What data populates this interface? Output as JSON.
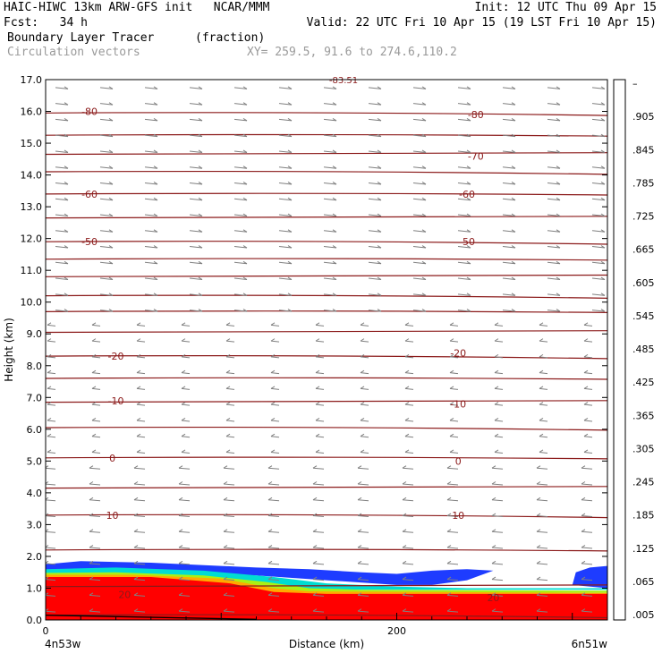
{
  "header": {
    "line1_left": "HAIC-HIWC 13km ARW-GFS init   NCAR/MMM",
    "line1_right": "Init: 12 UTC Thu 09 Apr 15",
    "line2_left": "Fcst:   34 h",
    "line2_right": "Valid: 22 UTC Fri 10 Apr 15 (19 LST Fri 10 Apr 15)",
    "field_name": "Boundary Layer Tracer",
    "field_units": "(fraction)",
    "vector_label": "Circulation vectors",
    "xy_label": "XY= 259.5, 91.6 to 274.6,110.2"
  },
  "colors": {
    "contour": "#8b1a1a",
    "vector": "#808080",
    "scale": [
      "#ffffff",
      "#1e3cff",
      "#0a78ff",
      "#00b4ff",
      "#00dcd2",
      "#00dca0",
      "#00c864",
      "#14d232",
      "#64e61e",
      "#aaf014",
      "#e6f00a",
      "#fff000",
      "#ffd200",
      "#ffaa00",
      "#ff7d00",
      "#ff5000",
      "#ff2800",
      "#ff0a0a",
      "#ff0000"
    ]
  },
  "chart_data": {
    "type": "cross-section",
    "xlabel": "Distance (km)",
    "ylabel": "Height (km)",
    "x_ticks": [
      "0",
      "200"
    ],
    "x_range": [
      0,
      320
    ],
    "y_range": [
      0,
      17
    ],
    "y_ticks": [
      "0.0",
      "1.0",
      "2.0",
      "3.0",
      "4.0",
      "5.0",
      "6.0",
      "7.0",
      "8.0",
      "9.0",
      "10.0",
      "11.0",
      "12.0",
      "13.0",
      "14.0",
      "15.0",
      "16.0",
      "17.0"
    ],
    "left_endpoint": "4n53w",
    "right_endpoint": "6n51w",
    "colorbar_labels": [
      ".005",
      ".065",
      ".125",
      ".185",
      ".245",
      ".305",
      ".365",
      ".425",
      ".485",
      ".545",
      ".605",
      ".665",
      ".725",
      ".785",
      ".845",
      ".905",
      "–"
    ],
    "contour_labels": [
      {
        "text": "-80",
        "x": 25,
        "y": 16.0
      },
      {
        "text": "-80",
        "x": 245,
        "y": 15.9
      },
      {
        "text": "-70",
        "x": 245,
        "y": 14.6
      },
      {
        "text": "-60",
        "x": 25,
        "y": 13.4
      },
      {
        "text": "-60",
        "x": 240,
        "y": 13.4
      },
      {
        "text": "-50",
        "x": 25,
        "y": 11.9
      },
      {
        "text": "-50",
        "x": 240,
        "y": 11.9
      },
      {
        "text": "-20",
        "x": 40,
        "y": 8.3
      },
      {
        "text": "-20",
        "x": 235,
        "y": 8.4
      },
      {
        "text": "-10",
        "x": 40,
        "y": 6.9
      },
      {
        "text": "-10",
        "x": 235,
        "y": 6.8
      },
      {
        "text": "0",
        "x": 38,
        "y": 5.1
      },
      {
        "text": "0",
        "x": 235,
        "y": 5.0
      },
      {
        "text": "10",
        "x": 38,
        "y": 3.3
      },
      {
        "text": "10",
        "x": 235,
        "y": 3.3
      },
      {
        "text": "20",
        "x": 45,
        "y": 0.8
      },
      {
        "text": "20",
        "x": 255,
        "y": 0.7
      }
    ],
    "top_label": "-83.51"
  }
}
